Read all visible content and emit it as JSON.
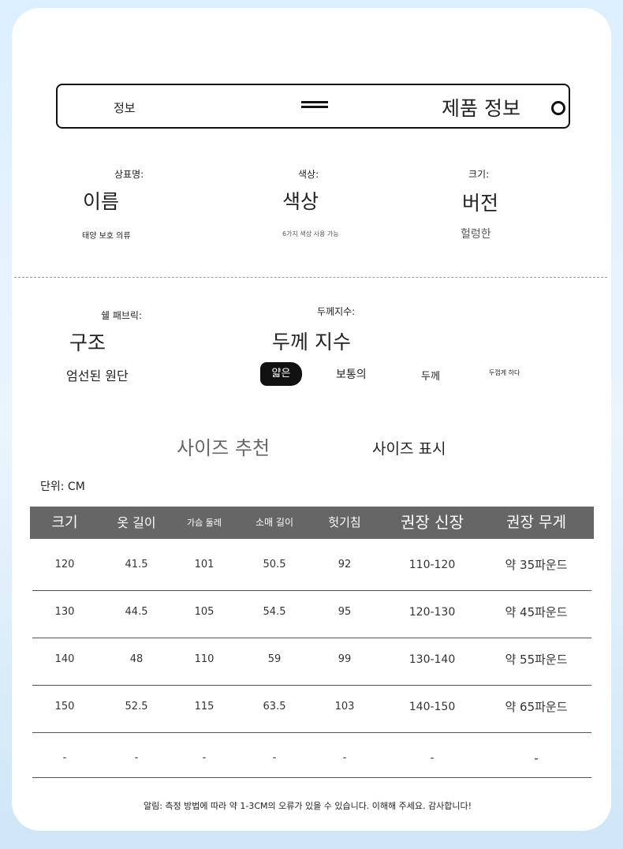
{
  "header": {
    "left_label": "정보",
    "title": "제품 정보",
    "menu_icon": "hamburger-icon",
    "circle_icon": "circle-icon"
  },
  "info": [
    {
      "label": "상표명:",
      "value": "이름",
      "note": "태양 보호 의류"
    },
    {
      "label": "색상:",
      "value": "색상",
      "note": "6가지 색상 사용 가능"
    },
    {
      "label": "크기:",
      "value": "버전",
      "note": "헐렁한"
    }
  ],
  "fabric": {
    "label": "쉘 패브릭:",
    "value": "구조",
    "note": "엄선된 원단"
  },
  "thickness": {
    "label": "두께지수:",
    "value": "두께 지수",
    "options": [
      "얇은",
      "보통의",
      "두께",
      "두껍게 하다"
    ],
    "selected": "얇은"
  },
  "size_section": {
    "title": "사이즈 추천",
    "subtitle": "사이즈 표시",
    "unit": "단위: CM"
  },
  "table": {
    "headers": [
      "크기",
      "옷 길이",
      "가슴 둘레",
      "소매 길이",
      "헛기침",
      "권장 신장",
      "권장 무게"
    ],
    "rows": [
      [
        "120",
        "41.5",
        "101",
        "50.5",
        "92",
        "110-120",
        "약 35파운드"
      ],
      [
        "130",
        "44.5",
        "105",
        "54.5",
        "95",
        "120-130",
        "약 45파운드"
      ],
      [
        "140",
        "48",
        "110",
        "59",
        "99",
        "130-140",
        "약 55파운드"
      ],
      [
        "150",
        "52.5",
        "115",
        "63.5",
        "103",
        "140-150",
        "약 65파운드"
      ],
      [
        "-",
        "-",
        "-",
        "-",
        "-",
        "-",
        "-"
      ]
    ]
  },
  "footer_note": "알림: 측정 방법에 따라 약 1-3CM의 오류가 있을 수 있습니다. 이해해 주세요. 감사합니다!"
}
